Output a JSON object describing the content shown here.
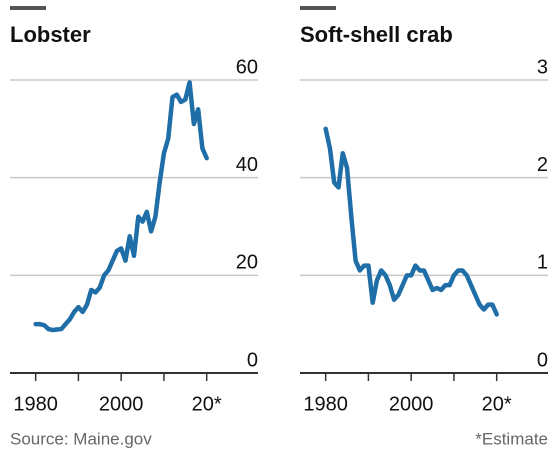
{
  "chart_data": [
    {
      "type": "line",
      "title": "Lobster",
      "x": [
        1980,
        1981,
        1982,
        1983,
        1984,
        1985,
        1986,
        1987,
        1988,
        1989,
        1990,
        1991,
        1992,
        1993,
        1994,
        1995,
        1996,
        1997,
        1998,
        1999,
        2000,
        2001,
        2002,
        2003,
        2004,
        2005,
        2006,
        2007,
        2008,
        2009,
        2010,
        2011,
        2012,
        2013,
        2014,
        2015,
        2016,
        2017,
        2018,
        2019,
        2020
      ],
      "series": [
        {
          "color": "#1f6ea8",
          "values": [
            10,
            10,
            9.8,
            9,
            8.8,
            8.9,
            9,
            10,
            11,
            12.5,
            13.5,
            12.5,
            14,
            17,
            16.5,
            17.5,
            20,
            21,
            23,
            25,
            25.5,
            23,
            28,
            24,
            32,
            31,
            33,
            29,
            32,
            39,
            45,
            48,
            56.5,
            57,
            55.5,
            56,
            59.5,
            51,
            54,
            46,
            44
          ]
        }
      ],
      "xlim": [
        1974,
        2032
      ],
      "xticks": [
        1980,
        2000,
        {
          "value": 2020,
          "label": "20*"
        }
      ],
      "xminorticks": [
        1990,
        2010
      ],
      "ylim": [
        0,
        60
      ],
      "yticks": [
        0,
        20,
        40,
        60
      ],
      "grid": true,
      "source": "Source: Maine.gov"
    },
    {
      "type": "line",
      "title": "Soft-shell crab",
      "x": [
        1980,
        1981,
        1982,
        1983,
        1984,
        1985,
        1986,
        1987,
        1988,
        1989,
        1990,
        1991,
        1992,
        1993,
        1994,
        1995,
        1996,
        1997,
        1998,
        1999,
        2000,
        2001,
        2002,
        2003,
        2004,
        2005,
        2006,
        2007,
        2008,
        2009,
        2010,
        2011,
        2012,
        2013,
        2014,
        2015,
        2016,
        2017,
        2018,
        2019,
        2020
      ],
      "series": [
        {
          "color": "#1f6ea8",
          "values": [
            2.5,
            2.3,
            1.95,
            1.9,
            2.25,
            2.1,
            1.6,
            1.15,
            1.05,
            1.1,
            1.1,
            0.72,
            0.95,
            1.05,
            1.0,
            0.9,
            0.75,
            0.8,
            0.9,
            1.0,
            1.0,
            1.1,
            1.05,
            1.05,
            0.95,
            0.85,
            0.87,
            0.85,
            0.9,
            0.9,
            1.0,
            1.05,
            1.05,
            1.0,
            0.9,
            0.8,
            0.7,
            0.65,
            0.7,
            0.7,
            0.6
          ]
        }
      ],
      "xlim": [
        1974,
        2032
      ],
      "xticks": [
        1980,
        2000,
        {
          "value": 2020,
          "label": "20*"
        }
      ],
      "xminorticks": [
        1990,
        2010
      ],
      "ylim": [
        0,
        3
      ],
      "yticks": [
        0,
        1,
        2,
        3
      ],
      "grid": true,
      "note": "*Estimate"
    }
  ]
}
